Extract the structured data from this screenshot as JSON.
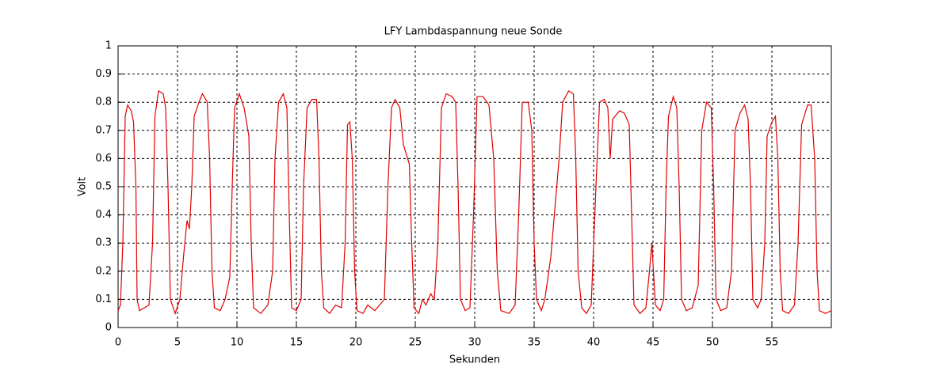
{
  "chart_data": {
    "type": "line",
    "title": "LFY  Lambdaspannung neue Sonde",
    "xlabel": "Sekunden",
    "ylabel": "Volt",
    "xlim": [
      0,
      60
    ],
    "ylim": [
      0,
      1
    ],
    "xticks": [
      0,
      5,
      10,
      15,
      20,
      25,
      30,
      35,
      40,
      45,
      50,
      55
    ],
    "yticks": [
      0,
      0.1,
      0.2,
      0.3,
      0.4,
      0.5,
      0.6,
      0.7,
      0.8,
      0.9,
      1
    ],
    "grid": true,
    "x": [
      0,
      0.2,
      0.4,
      0.6,
      0.8,
      1.1,
      1.3,
      1.5,
      1.6,
      1.8,
      2.2,
      2.6,
      2.9,
      3.1,
      3.4,
      3.8,
      4.0,
      4.2,
      4.4,
      4.8,
      5.2,
      5.5,
      5.8,
      6.0,
      6.2,
      6.4,
      6.8,
      7.1,
      7.5,
      7.7,
      7.9,
      8.1,
      8.6,
      9.0,
      9.4,
      9.6,
      9.8,
      10.2,
      10.6,
      11.0,
      11.2,
      11.4,
      12.0,
      12.6,
      13.0,
      13.2,
      13.5,
      13.9,
      14.2,
      14.4,
      14.6,
      15.0,
      15.4,
      15.6,
      15.9,
      16.3,
      16.7,
      16.9,
      17.1,
      17.3,
      17.8,
      18.3,
      18.8,
      19.1,
      19.3,
      19.5,
      19.7,
      19.9,
      20.1,
      20.6,
      21.0,
      21.6,
      22.0,
      22.4,
      22.7,
      23.0,
      23.3,
      23.7,
      24.0,
      24.5,
      24.7,
      24.9,
      25.3,
      25.6,
      25.9,
      26.3,
      26.6,
      26.9,
      27.2,
      27.6,
      28.1,
      28.4,
      28.6,
      28.8,
      29.2,
      29.6,
      29.9,
      30.2,
      30.7,
      31.2,
      31.6,
      31.9,
      32.2,
      32.9,
      33.4,
      33.7,
      34.0,
      34.5,
      34.8,
      35.0,
      35.2,
      35.6,
      35.9,
      36.4,
      36.8,
      37.1,
      37.4,
      37.9,
      38.3,
      38.5,
      38.7,
      39.0,
      39.4,
      39.8,
      40.2,
      40.5,
      40.9,
      41.2,
      41.4,
      41.6,
      42.2,
      42.6,
      43.0,
      43.2,
      43.4,
      43.9,
      44.4,
      44.7,
      44.9,
      45.2,
      45.6,
      45.9,
      46.1,
      46.3,
      46.7,
      47.0,
      47.2,
      47.4,
      47.8,
      48.3,
      48.8,
      49.1,
      49.5,
      49.9,
      50.1,
      50.3,
      50.7,
      51.2,
      51.6,
      51.9,
      52.3,
      52.7,
      53.0,
      53.2,
      53.4,
      53.8,
      54.1,
      54.4,
      54.6,
      55.0,
      55.3,
      55.5,
      55.7,
      55.9,
      56.4,
      56.9,
      57.2,
      57.5,
      58.0,
      58.3,
      58.6,
      58.8,
      59.0,
      59.5,
      60.0
    ],
    "series": [
      {
        "color": "#e00000",
        "values": [
          0.06,
          0.08,
          0.3,
          0.75,
          0.79,
          0.77,
          0.73,
          0.5,
          0.1,
          0.06,
          0.07,
          0.08,
          0.3,
          0.75,
          0.84,
          0.83,
          0.78,
          0.5,
          0.1,
          0.05,
          0.1,
          0.25,
          0.38,
          0.35,
          0.5,
          0.75,
          0.8,
          0.83,
          0.8,
          0.6,
          0.2,
          0.07,
          0.06,
          0.1,
          0.18,
          0.5,
          0.78,
          0.83,
          0.78,
          0.68,
          0.3,
          0.07,
          0.05,
          0.08,
          0.2,
          0.6,
          0.8,
          0.83,
          0.78,
          0.4,
          0.07,
          0.06,
          0.1,
          0.5,
          0.78,
          0.81,
          0.81,
          0.6,
          0.2,
          0.07,
          0.05,
          0.08,
          0.07,
          0.3,
          0.72,
          0.73,
          0.6,
          0.2,
          0.06,
          0.05,
          0.08,
          0.06,
          0.08,
          0.1,
          0.5,
          0.78,
          0.81,
          0.78,
          0.65,
          0.58,
          0.3,
          0.07,
          0.05,
          0.1,
          0.08,
          0.12,
          0.1,
          0.3,
          0.78,
          0.83,
          0.82,
          0.8,
          0.5,
          0.1,
          0.06,
          0.07,
          0.4,
          0.82,
          0.82,
          0.79,
          0.6,
          0.2,
          0.06,
          0.05,
          0.08,
          0.4,
          0.8,
          0.8,
          0.7,
          0.3,
          0.1,
          0.06,
          0.1,
          0.25,
          0.45,
          0.6,
          0.8,
          0.84,
          0.83,
          0.6,
          0.2,
          0.07,
          0.05,
          0.08,
          0.5,
          0.8,
          0.81,
          0.78,
          0.6,
          0.74,
          0.77,
          0.76,
          0.72,
          0.4,
          0.08,
          0.05,
          0.07,
          0.2,
          0.3,
          0.08,
          0.06,
          0.1,
          0.5,
          0.75,
          0.82,
          0.78,
          0.5,
          0.1,
          0.06,
          0.07,
          0.15,
          0.7,
          0.8,
          0.78,
          0.5,
          0.1,
          0.06,
          0.07,
          0.2,
          0.7,
          0.76,
          0.79,
          0.74,
          0.5,
          0.1,
          0.07,
          0.1,
          0.3,
          0.68,
          0.73,
          0.75,
          0.6,
          0.2,
          0.06,
          0.05,
          0.08,
          0.3,
          0.72,
          0.79,
          0.79,
          0.6,
          0.2,
          0.06,
          0.05,
          0.06
        ]
      }
    ]
  }
}
